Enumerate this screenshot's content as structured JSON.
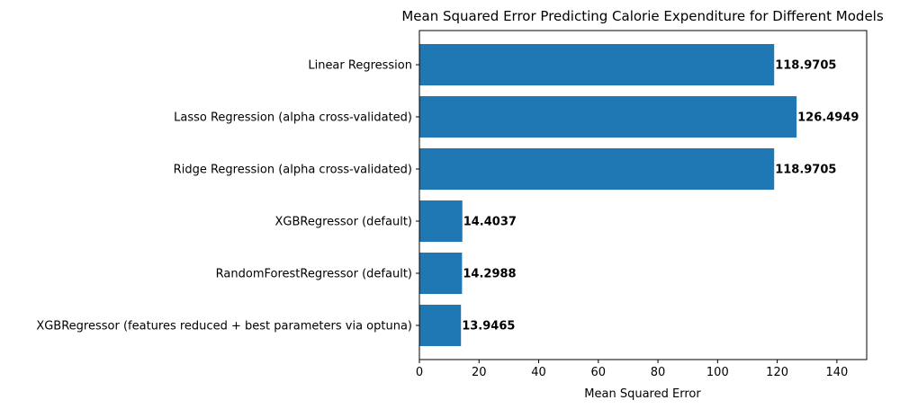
{
  "chart_data": {
    "type": "bar",
    "orientation": "horizontal",
    "title": "Mean Squared Error Predicting Calorie Expenditure for Different Models",
    "xlabel": "Mean Squared Error",
    "ylabel": "",
    "xlim": [
      0,
      150
    ],
    "xticks": [
      0,
      20,
      40,
      60,
      80,
      100,
      120,
      140
    ],
    "grid": false,
    "bar_color": "#1f77b4",
    "categories": [
      "Linear Regression",
      "Lasso Regression (alpha cross-validated)",
      "Ridge Regression (alpha cross-validated)",
      "XGBRegressor (default)",
      "RandomForestRegressor (default)",
      "XGBRegressor (features reduced + best parameters via optuna)"
    ],
    "values": [
      118.9705,
      126.4949,
      118.9705,
      14.4037,
      14.2988,
      13.9465
    ],
    "value_labels": [
      "118.9705",
      "126.4949",
      "118.9705",
      "14.4037",
      "14.2988",
      "13.9465"
    ]
  }
}
